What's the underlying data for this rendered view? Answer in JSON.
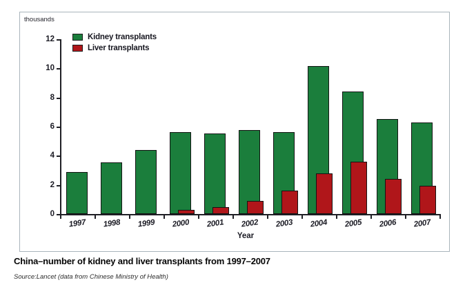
{
  "chart_data": {
    "type": "bar",
    "title": "China–number of kidney and liver transplants from 1997–2007",
    "categories": [
      "1997",
      "1998",
      "1999",
      "2000",
      "2001",
      "2002",
      "2003",
      "2004",
      "2005",
      "2006",
      "2007"
    ],
    "series": [
      {
        "name": "Kidney transplants",
        "color": "#1b7e3c",
        "values": [
          2.9,
          3.55,
          4.4,
          5.6,
          5.55,
          5.75,
          5.6,
          10.15,
          8.4,
          6.5,
          6.3
        ]
      },
      {
        "name": "Liver transplants",
        "color": "#b0161a",
        "values": [
          0,
          0,
          0,
          0.3,
          0.45,
          0.9,
          1.6,
          2.8,
          3.6,
          2.4,
          1.95
        ]
      }
    ],
    "xlabel": "Year",
    "ylabel": "thousands",
    "ylim": [
      0,
      12
    ],
    "yticks": [
      0,
      2,
      4,
      6,
      8,
      10,
      12
    ],
    "grid": false,
    "legend_position": "top-left-inside"
  },
  "caption": {
    "title": "China–number of kidney and liver transplants from 1997–2007",
    "source": "Source:Lancet (data from Chinese Ministry of Health)"
  },
  "colors": {
    "kidney": "#1b7e3c",
    "liver": "#b0161a",
    "axis": "#1e1e24",
    "panel_border": "#a9b4bb"
  }
}
